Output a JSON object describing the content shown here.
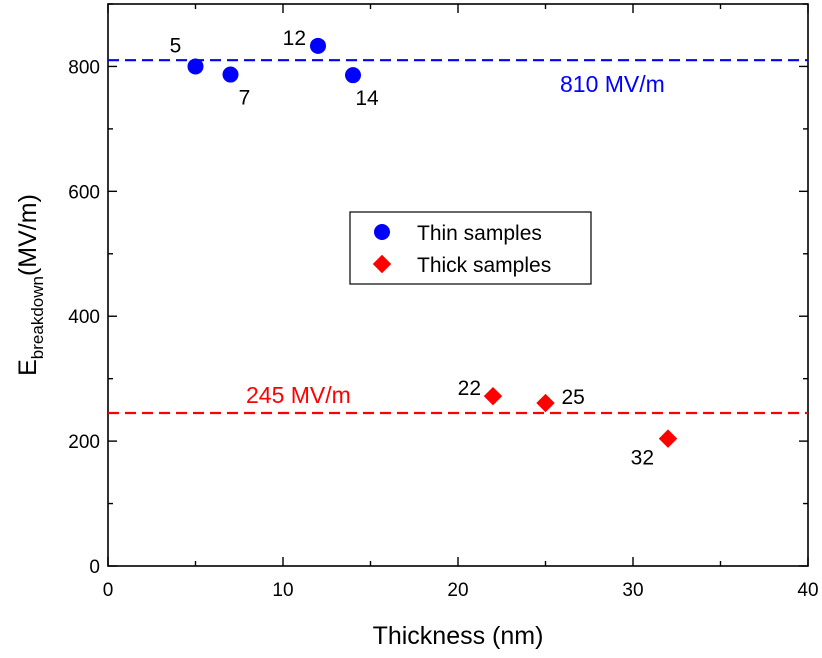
{
  "chart_data": {
    "type": "scatter",
    "xlabel": "Thickness (nm)",
    "ylabel": {
      "main": "E",
      "sub": "breakdown",
      "tail": "(MV/m)"
    },
    "xlim": [
      0,
      40
    ],
    "ylim": [
      0,
      900
    ],
    "xticks": [
      0,
      10,
      20,
      30,
      40
    ],
    "yticks": [
      0,
      200,
      400,
      600,
      800
    ],
    "grid": false,
    "legend": {
      "placement": "center"
    },
    "series": [
      {
        "name": "Thin samples",
        "marker": "circle",
        "color": "#0000ff",
        "points": [
          {
            "x": 5,
            "y": 800,
            "label": "5",
            "label_pos": "top-left"
          },
          {
            "x": 7,
            "y": 787,
            "label": "7",
            "label_pos": "bottom-right"
          },
          {
            "x": 12,
            "y": 833,
            "label": "12",
            "label_pos": "left"
          },
          {
            "x": 14,
            "y": 786,
            "label": "14",
            "label_pos": "bottom-right"
          }
        ]
      },
      {
        "name": "Thick samples",
        "marker": "diamond",
        "color": "#ff0000",
        "points": [
          {
            "x": 22,
            "y": 272,
            "label": "22",
            "label_pos": "left"
          },
          {
            "x": 25,
            "y": 261,
            "label": "25",
            "label_pos": "right"
          },
          {
            "x": 32,
            "y": 204,
            "label": "32",
            "label_pos": "bottom-left"
          }
        ]
      }
    ],
    "reference_lines": [
      {
        "y": 810,
        "color": "#0000ff",
        "label": "810 MV/m"
      },
      {
        "y": 245,
        "color": "#ff0000",
        "label": "245 MV/m"
      }
    ]
  }
}
